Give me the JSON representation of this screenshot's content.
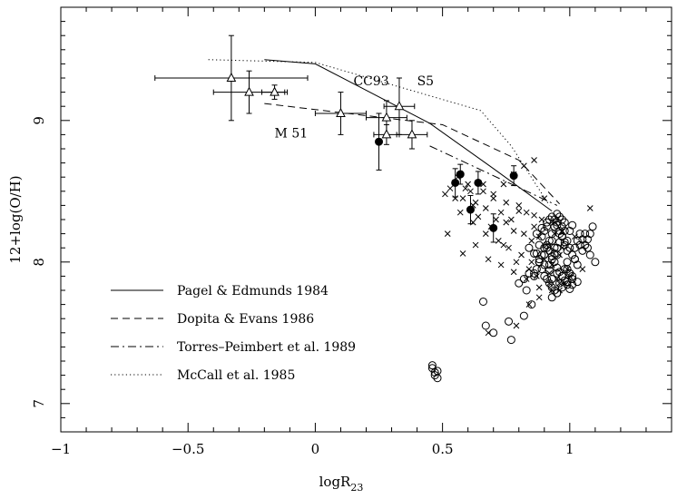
{
  "chart_data": {
    "type": "scatter",
    "title": "",
    "xlabel": "logR",
    "xlabel_sub": "23",
    "ylabel": "12+log(O/H)",
    "xlim": [
      -1.0,
      1.4
    ],
    "ylim": [
      6.8,
      9.8
    ],
    "x_ticks": [
      -1,
      -0.5,
      0,
      0.5,
      1
    ],
    "x_tick_labels": [
      "−1",
      "−0.5",
      "0",
      "0.5",
      "1"
    ],
    "y_ticks": [
      7,
      8,
      9
    ],
    "y_tick_labels": [
      "7",
      "8",
      "9"
    ],
    "grid": false,
    "legend_position": "bottom-left",
    "annotations": [
      {
        "text": "CC93",
        "x": 0.15,
        "y": 9.25
      },
      {
        "text": "S5",
        "x": 0.4,
        "y": 9.25
      },
      {
        "text": "M 51",
        "x": -0.16,
        "y": 8.88
      }
    ],
    "series": [
      {
        "name": "Pagel & Edmunds 1984",
        "kind": "line",
        "style": "solid",
        "x": [
          -0.2,
          0.0,
          0.45,
          0.7,
          0.93
        ],
        "y": [
          9.43,
          9.4,
          8.98,
          8.66,
          8.36
        ]
      },
      {
        "name": "Dopita & Evans 1986",
        "kind": "line",
        "style": "dashed",
        "x": [
          -0.2,
          0.5,
          0.8,
          0.96
        ],
        "y": [
          9.12,
          8.97,
          8.72,
          8.41
        ]
      },
      {
        "name": "Torres–Peimbert et al. 1989",
        "kind": "line",
        "style": "dashdot",
        "x": [
          0.45,
          0.95
        ],
        "y": [
          8.82,
          8.4
        ]
      },
      {
        "name": "McCall et al. 1985",
        "kind": "line",
        "style": "dotted",
        "x": [
          -0.42,
          0.0,
          0.65,
          0.77,
          0.92
        ],
        "y": [
          9.43,
          9.41,
          9.07,
          8.82,
          8.4
        ]
      },
      {
        "kind": "triangles_with_errors",
        "points": [
          {
            "x": -0.33,
            "y": 9.3,
            "xerr": 0.3,
            "yerr": 0.3
          },
          {
            "x": -0.26,
            "y": 9.2,
            "xerr": 0.14,
            "yerr": 0.15
          },
          {
            "x": -0.16,
            "y": 9.2,
            "xerr": 0.05,
            "yerr": 0.05
          },
          {
            "x": 0.1,
            "y": 9.05,
            "xerr": 0.1,
            "yerr": 0.15
          },
          {
            "x": 0.28,
            "y": 9.02,
            "xerr": 0.08,
            "yerr": 0.12
          },
          {
            "x": 0.33,
            "y": 9.1,
            "xerr": 0.06,
            "yerr": 0.2
          },
          {
            "x": 0.28,
            "y": 8.9,
            "xerr": 0.05,
            "yerr": 0.07
          },
          {
            "x": 0.38,
            "y": 8.9,
            "xerr": 0.06,
            "yerr": 0.1
          }
        ]
      },
      {
        "kind": "filled_with_errors",
        "points": [
          {
            "x": 0.25,
            "y": 8.85,
            "yerr": 0.2
          },
          {
            "x": 0.55,
            "y": 8.56,
            "yerr": 0.1
          },
          {
            "x": 0.57,
            "y": 8.62,
            "yerr": 0.07
          },
          {
            "x": 0.64,
            "y": 8.56,
            "yerr": 0.08
          },
          {
            "x": 0.61,
            "y": 8.37,
            "yerr": 0.1
          },
          {
            "x": 0.7,
            "y": 8.24,
            "yerr": 0.1
          },
          {
            "x": 0.78,
            "y": 8.61,
            "yerr": 0.07
          }
        ]
      },
      {
        "kind": "crosses",
        "x": [
          0.51,
          0.53,
          0.56,
          0.58,
          0.6,
          0.62,
          0.66,
          0.7,
          0.73,
          0.77,
          0.8,
          0.83,
          0.86,
          0.89,
          0.55,
          0.59,
          0.63,
          0.67,
          0.71,
          0.75,
          0.78,
          0.82,
          0.85,
          0.88,
          0.91,
          0.94,
          0.97,
          0.57,
          0.62,
          0.67,
          0.72,
          0.76,
          0.81,
          0.85,
          0.9,
          0.93,
          0.96,
          0.99,
          0.52,
          0.61,
          0.64,
          0.69,
          0.74,
          0.79,
          0.84,
          0.87,
          0.92,
          0.95,
          0.98,
          0.66,
          0.7,
          0.75,
          0.8,
          0.86,
          0.9,
          0.94,
          0.97,
          1.02,
          0.58,
          0.63,
          0.68,
          0.73,
          0.78,
          0.83,
          0.88,
          0.92,
          0.96,
          1.0,
          1.05,
          1.08,
          0.86,
          0.82,
          0.78,
          0.74,
          0.68,
          0.79,
          0.84,
          0.88,
          0.93,
          0.96
        ],
        "y": [
          8.48,
          8.52,
          8.6,
          8.45,
          8.55,
          8.4,
          8.5,
          8.45,
          8.35,
          8.3,
          8.4,
          8.35,
          8.25,
          8.3,
          8.45,
          8.52,
          8.42,
          8.38,
          8.3,
          8.28,
          8.22,
          8.2,
          8.15,
          8.18,
          8.12,
          8.2,
          8.1,
          8.35,
          8.28,
          8.2,
          8.15,
          8.1,
          8.05,
          8.0,
          8.02,
          7.98,
          8.05,
          7.95,
          8.2,
          8.5,
          8.32,
          8.25,
          8.12,
          8.0,
          7.95,
          7.9,
          7.92,
          7.88,
          7.85,
          8.55,
          8.48,
          8.42,
          8.36,
          8.33,
          8.45,
          8.28,
          8.22,
          8.18,
          8.06,
          8.12,
          8.02,
          7.98,
          7.93,
          7.88,
          7.82,
          7.85,
          7.8,
          7.9,
          7.95,
          8.38,
          8.72,
          8.68,
          8.62,
          8.55,
          7.5,
          7.55,
          7.7,
          7.75,
          7.8,
          7.85
        ]
      },
      {
        "kind": "open_circles",
        "x": [
          0.46,
          0.47,
          0.48,
          0.46,
          0.47,
          0.48,
          0.66,
          0.67,
          0.7,
          0.76,
          0.77,
          0.85,
          0.82,
          0.83,
          0.86,
          0.87,
          0.88,
          0.89,
          0.9,
          0.91,
          0.92,
          0.93,
          0.94,
          0.95,
          0.96,
          0.97,
          0.98,
          0.99,
          1.0,
          1.01,
          1.02,
          1.03,
          1.04,
          1.05,
          1.06,
          1.07,
          1.08,
          1.09,
          1.1,
          0.88,
          0.89,
          0.9,
          0.91,
          0.92,
          0.93,
          0.94,
          0.95,
          0.96,
          0.97,
          0.98,
          0.99,
          1.0,
          1.01,
          1.02,
          1.03,
          1.04,
          0.9,
          0.91,
          0.92,
          0.93,
          0.94,
          0.95,
          0.96,
          0.97,
          0.98,
          0.99,
          1.0,
          1.01,
          1.02,
          0.92,
          0.93,
          0.94,
          0.95,
          0.96,
          0.97,
          0.98,
          0.99,
          1.0,
          0.86,
          0.87,
          0.88,
          0.89,
          0.9,
          0.91,
          0.92,
          0.93,
          0.94,
          0.95,
          0.96,
          0.97,
          0.98,
          0.99,
          1.0,
          0.94,
          0.95,
          0.96,
          0.97,
          0.98,
          1.05,
          1.06,
          1.07,
          1.08,
          0.93,
          0.95,
          0.97,
          0.99,
          1.01,
          0.87,
          0.89,
          0.91,
          0.93,
          0.95,
          0.97,
          0.84,
          0.86,
          0.88,
          0.9,
          0.92,
          0.8,
          0.82,
          0.84,
          0.93,
          0.95,
          1.01,
          1.03
        ],
        "y": [
          7.25,
          7.22,
          7.18,
          7.27,
          7.2,
          7.23,
          7.72,
          7.55,
          7.5,
          7.58,
          7.45,
          7.7,
          7.62,
          7.8,
          7.92,
          8.06,
          8.12,
          8.18,
          8.22,
          8.25,
          8.3,
          8.15,
          8.1,
          8.05,
          8.2,
          8.25,
          8.28,
          8.15,
          8.1,
          8.05,
          8.02,
          7.98,
          8.12,
          8.16,
          8.2,
          8.1,
          8.05,
          8.25,
          8.0,
          8.0,
          7.95,
          7.9,
          7.88,
          7.85,
          7.82,
          7.8,
          7.78,
          7.85,
          7.9,
          7.95,
          8.0,
          7.92,
          7.88,
          8.1,
          8.15,
          8.2,
          8.05,
          8.1,
          8.15,
          8.2,
          8.25,
          8.28,
          8.32,
          8.18,
          8.12,
          8.08,
          8.22,
          8.26,
          8.02,
          7.98,
          8.02,
          8.06,
          8.1,
          8.14,
          8.18,
          8.22,
          7.95,
          7.92,
          7.9,
          7.95,
          8.0,
          8.05,
          8.1,
          8.12,
          8.08,
          8.04,
          8.0,
          7.96,
          7.93,
          7.9,
          7.87,
          7.84,
          7.81,
          8.3,
          8.26,
          8.22,
          8.18,
          8.14,
          8.08,
          8.12,
          8.16,
          8.2,
          7.75,
          7.78,
          7.82,
          7.86,
          7.9,
          8.2,
          8.24,
          8.28,
          8.32,
          8.34,
          8.3,
          8.1,
          8.06,
          8.02,
          7.98,
          7.94,
          7.85,
          7.88,
          7.92,
          7.88,
          7.92,
          7.84,
          7.86
        ]
      }
    ]
  }
}
